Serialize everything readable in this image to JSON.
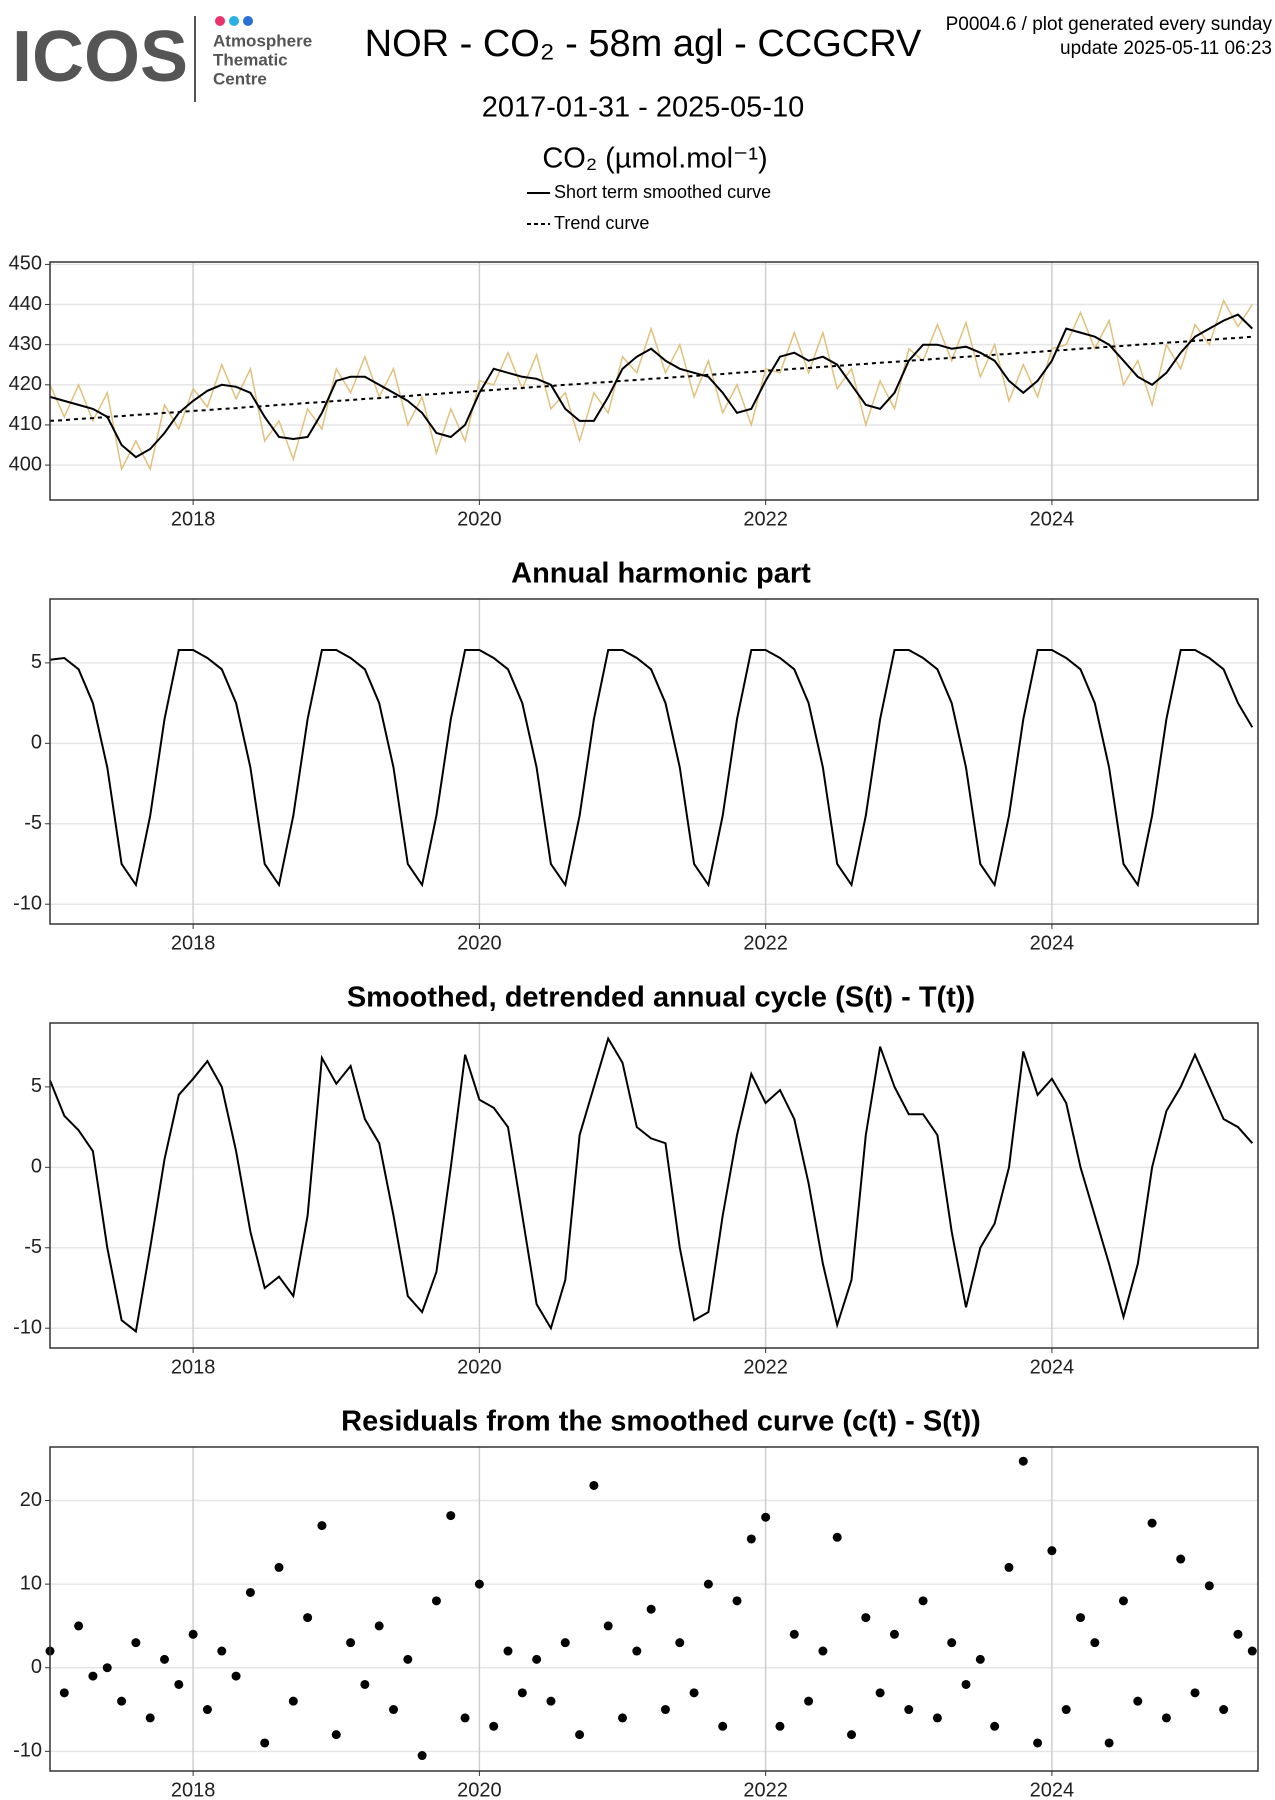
{
  "header": {
    "logo": "ICOS",
    "logo_lines": [
      "Atmosphere",
      "Thematic",
      "Centre"
    ],
    "note": [
      "P0004.6 / plot generated every sunday",
      "update  2025-05-11 06:23"
    ]
  },
  "chart_data": [
    {
      "type": "line",
      "title": "NOR - CO₂ - 58m agl - CCGCRV",
      "subtitle": "2017-01-31 - 2025-05-10",
      "y_label": "CO₂ (µmol.mol⁻¹)",
      "x": [
        2017,
        2017.1,
        2017.2,
        2017.3,
        2017.4,
        2017.5,
        2017.6,
        2017.7,
        2017.8,
        2017.9,
        2018,
        2018.1,
        2018.2,
        2018.3,
        2018.4,
        2018.5,
        2018.6,
        2018.7,
        2018.8,
        2018.9,
        2019,
        2019.1,
        2019.2,
        2019.3,
        2019.4,
        2019.5,
        2019.6,
        2019.7,
        2019.8,
        2019.9,
        2020,
        2020.1,
        2020.2,
        2020.3,
        2020.4,
        2020.5,
        2020.6,
        2020.7,
        2020.8,
        2020.9,
        2021,
        2021.1,
        2021.2,
        2021.3,
        2021.4,
        2021.5,
        2021.6,
        2021.7,
        2021.8,
        2021.9,
        2022,
        2022.1,
        2022.2,
        2022.3,
        2022.4,
        2022.5,
        2022.6,
        2022.7,
        2022.8,
        2022.9,
        2023,
        2023.1,
        2023.2,
        2023.3,
        2023.4,
        2023.5,
        2023.6,
        2023.7,
        2023.8,
        2023.9,
        2024,
        2024.1,
        2024.2,
        2024.3,
        2024.4,
        2024.5,
        2024.6,
        2024.7,
        2024.8,
        2024.9,
        2025,
        2025.1,
        2025.2,
        2025.3,
        2025.4
      ],
      "series": [
        {
          "color": "#e2c07e",
          "values": [
            420,
            412,
            420,
            411,
            418,
            399,
            406,
            399,
            415,
            409,
            419,
            414.5,
            425,
            416.5,
            424,
            406,
            411,
            401.5,
            414,
            409,
            424,
            418,
            427,
            417,
            424,
            410,
            417,
            403,
            414,
            406,
            421,
            420,
            428,
            419,
            427.5,
            414,
            418,
            406,
            418,
            413,
            427,
            423,
            434,
            423,
            430,
            417,
            426,
            413,
            420,
            410,
            424,
            423,
            433,
            423,
            433,
            419,
            424,
            410,
            421,
            414,
            429,
            426,
            435,
            426,
            435.5,
            422,
            430,
            416,
            425,
            417,
            429,
            430,
            438,
            429,
            436,
            420,
            426,
            415,
            430,
            424,
            435,
            430,
            441,
            434.5,
            440
          ]
        },
        {
          "name": "Short term smoothed curve",
          "color": "#000000",
          "values": [
            417,
            416,
            415,
            414,
            412,
            405,
            402,
            404,
            408,
            413,
            416,
            418.5,
            420,
            419.5,
            418,
            412,
            407,
            406.5,
            407,
            413,
            421,
            422,
            422,
            420,
            418,
            416,
            413,
            408,
            407,
            410,
            418,
            424,
            423,
            422,
            421.5,
            420,
            414,
            411,
            411,
            417,
            424,
            427,
            429,
            426,
            424,
            423,
            422,
            418,
            413,
            414,
            421,
            427,
            428,
            426,
            427,
            425,
            420,
            415,
            414,
            418,
            426,
            430,
            430,
            429,
            429.5,
            428,
            426,
            421,
            418,
            421,
            426,
            434,
            433,
            432,
            430,
            426,
            422,
            420,
            423,
            428,
            432,
            434,
            436,
            437.5,
            434
          ]
        },
        {
          "name": "Trend curve",
          "color": "#000000",
          "dash": true,
          "values": [
            411,
            411.2,
            411.5,
            411.7,
            412,
            412.2,
            412.5,
            412.7,
            413,
            413.2,
            413.5,
            413.7,
            414,
            414.2,
            414.5,
            414.7,
            415,
            415.2,
            415.5,
            415.7,
            416,
            416.2,
            416.5,
            416.7,
            417,
            417.2,
            417.5,
            417.7,
            418,
            418.2,
            418.5,
            418.7,
            419,
            419.2,
            419.5,
            419.7,
            420,
            420.2,
            420.5,
            420.7,
            421,
            421.2,
            421.5,
            421.7,
            422,
            422.2,
            422.5,
            422.7,
            423,
            423.2,
            423.5,
            423.7,
            424,
            424.2,
            424.5,
            424.7,
            425,
            425.2,
            425.5,
            425.7,
            426,
            426.2,
            426.5,
            426.7,
            427,
            427.2,
            427.5,
            427.7,
            428,
            428.2,
            428.5,
            428.7,
            429,
            429.2,
            429.5,
            429.7,
            430,
            430.2,
            430.5,
            430.7,
            431,
            431.2,
            431.5,
            431.7,
            432
          ]
        }
      ],
      "xlim": [
        2017.0,
        2025.44
      ],
      "xticks": [
        2018,
        2020,
        2022,
        2024
      ],
      "ylim": [
        391.3,
        450.6
      ],
      "yticks": [
        400,
        410,
        420,
        430,
        440,
        450
      ],
      "grid": true
    },
    {
      "type": "line",
      "title": "Annual harmonic part",
      "x": [
        2017,
        2017.1,
        2017.2,
        2017.3,
        2017.4,
        2017.5,
        2017.6,
        2017.7,
        2017.8,
        2017.9,
        2018,
        2018.1,
        2018.2,
        2018.3,
        2018.4,
        2018.5,
        2018.6,
        2018.7,
        2018.8,
        2018.9,
        2019,
        2019.1,
        2019.2,
        2019.3,
        2019.4,
        2019.5,
        2019.6,
        2019.7,
        2019.8,
        2019.9,
        2020,
        2020.1,
        2020.2,
        2020.3,
        2020.4,
        2020.5,
        2020.6,
        2020.7,
        2020.8,
        2020.9,
        2021,
        2021.1,
        2021.2,
        2021.3,
        2021.4,
        2021.5,
        2021.6,
        2021.7,
        2021.8,
        2021.9,
        2022,
        2022.1,
        2022.2,
        2022.3,
        2022.4,
        2022.5,
        2022.6,
        2022.7,
        2022.8,
        2022.9,
        2023,
        2023.1,
        2023.2,
        2023.3,
        2023.4,
        2023.5,
        2023.6,
        2023.7,
        2023.8,
        2023.9,
        2024,
        2024.1,
        2024.2,
        2024.3,
        2024.4,
        2024.5,
        2024.6,
        2024.7,
        2024.8,
        2024.9,
        2025,
        2025.1,
        2025.2,
        2025.3,
        2025.4
      ],
      "series": [
        {
          "color": "#000000",
          "values": [
            5.2,
            5.3,
            4.6,
            2.5,
            -1.5,
            -7.5,
            -8.8,
            -4.5,
            1.5,
            5.8,
            5.8,
            5.3,
            4.6,
            2.5,
            -1.5,
            -7.5,
            -8.8,
            -4.5,
            1.5,
            5.8,
            5.8,
            5.3,
            4.6,
            2.5,
            -1.5,
            -7.5,
            -8.8,
            -4.5,
            1.5,
            5.8,
            5.8,
            5.3,
            4.6,
            2.5,
            -1.5,
            -7.5,
            -8.8,
            -4.5,
            1.5,
            5.8,
            5.8,
            5.3,
            4.6,
            2.5,
            -1.5,
            -7.5,
            -8.8,
            -4.5,
            1.5,
            5.8,
            5.8,
            5.3,
            4.6,
            2.5,
            -1.5,
            -7.5,
            -8.8,
            -4.5,
            1.5,
            5.8,
            5.8,
            5.3,
            4.6,
            2.5,
            -1.5,
            -7.5,
            -8.8,
            -4.5,
            1.5,
            5.8,
            5.8,
            5.3,
            4.6,
            2.5,
            -1.5,
            -7.5,
            -8.8,
            -4.5,
            1.5,
            5.8,
            5.8,
            5.3,
            4.6,
            2.5,
            1.0
          ]
        }
      ],
      "xlim": [
        2017.0,
        2025.44
      ],
      "xticks": [
        2018,
        2020,
        2022,
        2024
      ],
      "ylim": [
        -11.23,
        8.97
      ],
      "yticks": [
        -10,
        -5,
        0,
        5
      ],
      "grid": true
    },
    {
      "type": "line",
      "title": "Smoothed, detrended annual cycle (S(t) - T(t))",
      "x": [
        2017,
        2017.1,
        2017.2,
        2017.3,
        2017.4,
        2017.5,
        2017.6,
        2017.7,
        2017.8,
        2017.9,
        2018,
        2018.1,
        2018.2,
        2018.3,
        2018.4,
        2018.5,
        2018.6,
        2018.7,
        2018.8,
        2018.9,
        2019,
        2019.1,
        2019.2,
        2019.3,
        2019.4,
        2019.5,
        2019.6,
        2019.7,
        2019.8,
        2019.9,
        2020,
        2020.1,
        2020.2,
        2020.3,
        2020.4,
        2020.5,
        2020.6,
        2020.7,
        2020.8,
        2020.9,
        2021,
        2021.1,
        2021.2,
        2021.3,
        2021.4,
        2021.5,
        2021.6,
        2021.7,
        2021.8,
        2021.9,
        2022,
        2022.1,
        2022.2,
        2022.3,
        2022.4,
        2022.5,
        2022.6,
        2022.7,
        2022.8,
        2022.9,
        2023,
        2023.1,
        2023.2,
        2023.3,
        2023.4,
        2023.5,
        2023.6,
        2023.7,
        2023.8,
        2023.9,
        2024,
        2024.1,
        2024.2,
        2024.3,
        2024.4,
        2024.5,
        2024.6,
        2024.7,
        2024.8,
        2024.9,
        2025,
        2025.1,
        2025.2,
        2025.3,
        2025.4
      ],
      "series": [
        {
          "color": "#000000",
          "values": [
            5.4,
            3.2,
            2.3,
            1,
            -5,
            -9.5,
            -10.2,
            -5,
            0.5,
            4.5,
            5.5,
            6.6,
            5,
            1,
            -4,
            -7.5,
            -6.8,
            -8,
            -3,
            6.8,
            5.2,
            6.3,
            3,
            1.5,
            -3,
            -8,
            -9,
            -6.5,
            0,
            7,
            4.2,
            3.7,
            2.5,
            -3,
            -8.5,
            -10,
            -7,
            2,
            5,
            8,
            6.5,
            2.5,
            1.8,
            1.5,
            -5,
            -9.5,
            -9,
            -3,
            2,
            5.8,
            4,
            4.8,
            3,
            -1,
            -6,
            -9.8,
            -7,
            2,
            7.5,
            5,
            3.3,
            3.3,
            2,
            -4,
            -8.7,
            -5,
            -3.5,
            0,
            7.2,
            4.5,
            5.5,
            4,
            0,
            -3,
            -6,
            -9.3,
            -6,
            0,
            3.5,
            5,
            7,
            5,
            3,
            2.5,
            1.5
          ]
        }
      ],
      "xlim": [
        2017.0,
        2025.44
      ],
      "xticks": [
        2018,
        2020,
        2022,
        2024
      ],
      "ylim": [
        -11.23,
        8.97
      ],
      "yticks": [
        -10,
        -5,
        0,
        5
      ],
      "grid": true
    },
    {
      "type": "scatter",
      "title": "Residuals from the smoothed curve (c(t) - S(t))",
      "x": [
        2017,
        2017.1,
        2017.2,
        2017.3,
        2017.4,
        2017.5,
        2017.6,
        2017.7,
        2017.8,
        2017.9,
        2018,
        2018.1,
        2018.2,
        2018.3,
        2018.4,
        2018.5,
        2018.6,
        2018.7,
        2018.8,
        2018.9,
        2019,
        2019.1,
        2019.2,
        2019.3,
        2019.4,
        2019.5,
        2019.6,
        2019.7,
        2019.8,
        2019.9,
        2020,
        2020.1,
        2020.2,
        2020.3,
        2020.4,
        2020.5,
        2020.6,
        2020.7,
        2020.8,
        2020.9,
        2021,
        2021.1,
        2021.2,
        2021.3,
        2021.4,
        2021.5,
        2021.6,
        2021.7,
        2021.8,
        2021.9,
        2022,
        2022.1,
        2022.2,
        2022.3,
        2022.4,
        2022.5,
        2022.6,
        2022.7,
        2022.8,
        2022.9,
        2023,
        2023.1,
        2023.2,
        2023.3,
        2023.4,
        2023.5,
        2023.6,
        2023.7,
        2023.8,
        2023.9,
        2024,
        2024.1,
        2024.2,
        2024.3,
        2024.4,
        2024.5,
        2024.6,
        2024.7,
        2024.8,
        2024.9,
        2025,
        2025.1,
        2025.2,
        2025.3,
        2025.4
      ],
      "series": [
        {
          "color": "#000000",
          "values": [
            2,
            -3,
            5,
            -1,
            0,
            -4,
            3,
            -6,
            1,
            -2,
            4,
            -5,
            2,
            -1,
            9,
            -9,
            12,
            -4,
            6,
            17,
            -8,
            3,
            -2,
            5,
            -5,
            1,
            -10.5,
            8,
            18.2,
            -6,
            10,
            -7,
            2,
            -3,
            1,
            -4,
            3,
            -8,
            21.8,
            5,
            -6,
            2,
            7,
            -5,
            3,
            -3,
            10,
            -7,
            8,
            15.4,
            18,
            -7,
            4,
            -4,
            2,
            15.6,
            -8,
            6,
            -3,
            4,
            -5,
            8,
            -6,
            3,
            -2,
            1,
            -7,
            12,
            24.7,
            -9,
            14,
            -5,
            6,
            3,
            -9,
            8,
            -4,
            17.3,
            -6,
            13,
            -3,
            9.8,
            -5,
            4,
            2
          ]
        }
      ],
      "xlim": [
        2017.0,
        2025.44
      ],
      "xticks": [
        2018,
        2020,
        2022,
        2024
      ],
      "ylim": [
        -12.35,
        26.4
      ],
      "yticks": [
        -10,
        0,
        10,
        20
      ],
      "grid": true
    }
  ]
}
